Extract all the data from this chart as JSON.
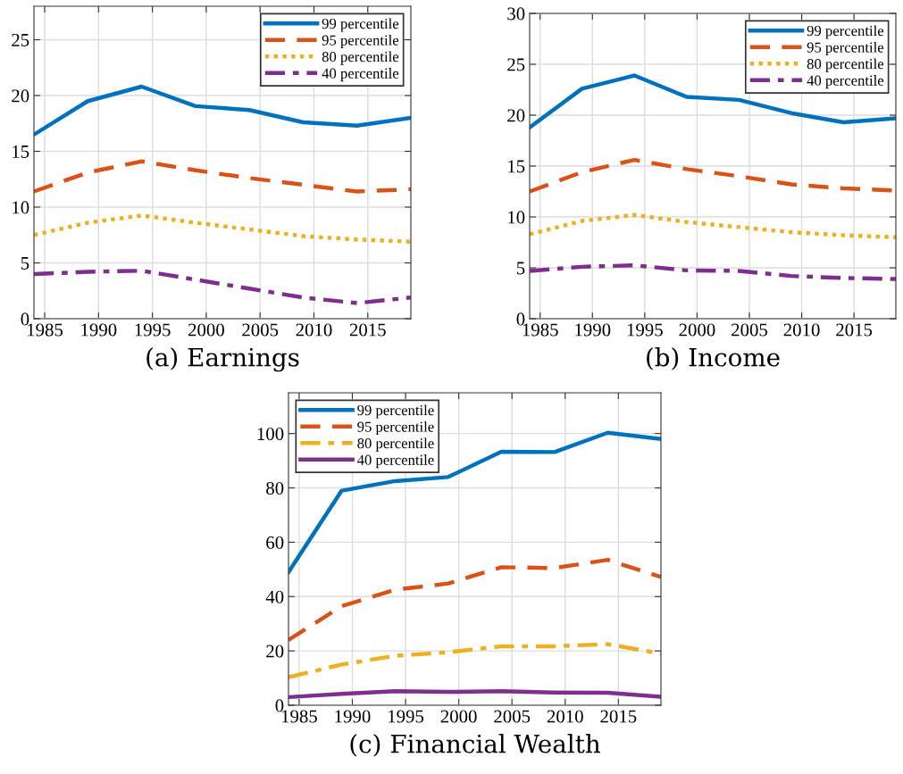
{
  "chart_data": [
    {
      "type": "line",
      "xlabel": "(a) Earnings",
      "x": [
        1984,
        1989,
        1994,
        1999,
        2004,
        2009,
        2014,
        2019
      ],
      "xlim": [
        1984,
        2019
      ],
      "xticks": [
        1985,
        1990,
        1995,
        2000,
        2005,
        2010,
        2015
      ],
      "ylim": [
        0,
        28
      ],
      "yticks": [
        0,
        5,
        10,
        15,
        20,
        25
      ],
      "grid": true,
      "legend": "top right",
      "series": [
        {
          "name": "99 percentile",
          "color": "#0072bd",
          "line_style": "solid",
          "values": [
            16.5,
            19.5,
            20.8,
            19.05,
            18.7,
            17.6,
            17.3,
            18.0
          ]
        },
        {
          "name": "95 percentile",
          "color": "#d95319",
          "line_style": "dashed",
          "values": [
            11.4,
            13.1,
            14.1,
            13.3,
            12.6,
            12.0,
            11.4,
            11.6
          ]
        },
        {
          "name": "80 percentile",
          "color": "#edb120",
          "line_style": "dotted",
          "values": [
            7.5,
            8.6,
            9.25,
            8.6,
            8.0,
            7.4,
            7.1,
            6.9
          ]
        },
        {
          "name": "40 percentile",
          "color": "#7e2f8e",
          "line_style": "dashdot",
          "values": [
            4.0,
            4.2,
            4.3,
            3.5,
            2.7,
            1.9,
            1.4,
            1.9
          ]
        }
      ]
    },
    {
      "type": "line",
      "xlabel": "(b) Income",
      "x": [
        1984,
        1989,
        1994,
        1999,
        2004,
        2009,
        2014,
        2019
      ],
      "xlim": [
        1984,
        2019
      ],
      "xticks": [
        1985,
        1990,
        1995,
        2000,
        2005,
        2010,
        2015
      ],
      "ylim": [
        0,
        30
      ],
      "yticks": [
        0,
        5,
        10,
        15,
        20,
        25,
        30
      ],
      "grid": true,
      "legend": "top right",
      "series": [
        {
          "name": "99 percentile",
          "color": "#0072bd",
          "line_style": "solid",
          "values": [
            18.8,
            22.6,
            23.9,
            21.8,
            21.5,
            20.2,
            19.3,
            19.7
          ]
        },
        {
          "name": "95 percentile",
          "color": "#d95319",
          "line_style": "dashed",
          "values": [
            12.5,
            14.4,
            15.6,
            14.7,
            14.0,
            13.2,
            12.8,
            12.6
          ]
        },
        {
          "name": "80 percentile",
          "color": "#edb120",
          "line_style": "dotted",
          "values": [
            8.3,
            9.6,
            10.2,
            9.5,
            9.0,
            8.5,
            8.2,
            8.0
          ]
        },
        {
          "name": "40 percentile",
          "color": "#7e2f8e",
          "line_style": "dashdot",
          "values": [
            4.7,
            5.1,
            5.25,
            4.75,
            4.7,
            4.2,
            4.0,
            3.9
          ]
        }
      ]
    },
    {
      "type": "line",
      "xlabel": "(c) Financial Wealth",
      "x": [
        1984,
        1989,
        1994,
        1999,
        2004,
        2009,
        2014,
        2019
      ],
      "xlim": [
        1984,
        2019
      ],
      "xticks": [
        1985,
        1990,
        1995,
        2000,
        2005,
        2010,
        2015
      ],
      "ylim": [
        0,
        115
      ],
      "yticks": [
        0,
        20,
        40,
        60,
        80,
        100
      ],
      "grid": true,
      "legend": "top left",
      "series": [
        {
          "name": "99 percentile",
          "color": "#0072bd",
          "line_style": "solid",
          "values": [
            49,
            79,
            82.5,
            84,
            93.3,
            93.2,
            100.3,
            98
          ]
        },
        {
          "name": "95 percentile",
          "color": "#d95319",
          "line_style": "dashed",
          "values": [
            24,
            36.5,
            42.5,
            44.8,
            50.8,
            50.5,
            53.5,
            47.2
          ]
        },
        {
          "name": "80 percentile",
          "color": "#edb120",
          "line_style": "dashdot",
          "values": [
            10.3,
            15,
            18.2,
            19.5,
            21.7,
            21.7,
            22.5,
            19
          ]
        },
        {
          "name": "40 percentile",
          "color": "#7e2f8e",
          "line_style": "solid",
          "values": [
            3,
            4.2,
            5.2,
            4.9,
            5.2,
            4.7,
            4.6,
            3.1
          ]
        }
      ]
    }
  ]
}
